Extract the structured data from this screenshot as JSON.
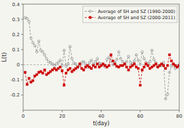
{
  "chart_data": {
    "type": "line",
    "title": "",
    "xlabel": "t(day)",
    "ylabel": "L(t)",
    "x": [
      1,
      2,
      3,
      4,
      5,
      6,
      7,
      8,
      9,
      10,
      11,
      12,
      13,
      14,
      15,
      16,
      17,
      18,
      19,
      20,
      21,
      22,
      23,
      24,
      25,
      26,
      27,
      28,
      29,
      30,
      31,
      32,
      33,
      34,
      35,
      36,
      37,
      38,
      39,
      40,
      41,
      42,
      43,
      44,
      45,
      46,
      47,
      48,
      49,
      50,
      51,
      52,
      53,
      54,
      55,
      56,
      57,
      58,
      59,
      60,
      61,
      62,
      63,
      64,
      65,
      66,
      67,
      68,
      69,
      70,
      71,
      72,
      73,
      74,
      75,
      76,
      77,
      78,
      79,
      80
    ],
    "series": [
      {
        "name": "Average of SH and SZ (1990-2000)",
        "color": "#888888",
        "marker": "circle",
        "line_style": "dashed",
        "values": [
          0.31,
          0.305,
          0.285,
          0.175,
          0.145,
          0.125,
          0.085,
          0.155,
          0.095,
          0.085,
          0.065,
          0.04,
          0.02,
          0.015,
          0.005,
          -0.005,
          0.005,
          0.015,
          0.03,
          -0.005,
          0.095,
          -0.01,
          0.005,
          0.12,
          0.04,
          0.01,
          0.005,
          -0.015,
          -0.005,
          0.015,
          0.02,
          0.005,
          -0.015,
          0.015,
          0.03,
          0.0,
          0.02,
          0.04,
          0.01,
          0.005,
          0.0,
          -0.015,
          0.035,
          0.05,
          0.025,
          0.0,
          0.015,
          0.035,
          0.085,
          0.04,
          0.02,
          0.005,
          0.02,
          0.055,
          0.015,
          0.005,
          0.025,
          0.065,
          0.03,
          0.005,
          0.085,
          0.04,
          0.015,
          0.005,
          0.02,
          0.095,
          0.035,
          0.015,
          -0.015,
          -0.005,
          -0.005,
          0.015,
          -0.225,
          -0.195,
          -0.05,
          -0.01,
          0.005,
          -0.025,
          -0.01,
          0.0
        ]
      },
      {
        "name": "Average of SH and SZ (2000-2011)",
        "color": "#cc0000",
        "marker": "square",
        "line_style": "dashed",
        "values": [
          -0.05,
          -0.13,
          -0.09,
          -0.115,
          -0.105,
          -0.075,
          -0.065,
          -0.05,
          -0.045,
          -0.055,
          -0.035,
          -0.065,
          -0.055,
          -0.045,
          -0.035,
          -0.025,
          -0.035,
          -0.025,
          -0.015,
          -0.04,
          -0.135,
          -0.055,
          -0.035,
          -0.025,
          -0.045,
          -0.035,
          -0.025,
          -0.015,
          0.005,
          -0.025,
          -0.035,
          -0.015,
          -0.005,
          -0.015,
          -0.025,
          -0.005,
          -0.015,
          0.005,
          -0.015,
          -0.005,
          0.005,
          -0.005,
          -0.015,
          -0.005,
          0.065,
          0.025,
          0.005,
          -0.01,
          -0.015,
          -0.005,
          -0.005,
          0.005,
          -0.015,
          -0.035,
          -0.015,
          -0.005,
          0.005,
          -0.015,
          -0.025,
          -0.135,
          -0.035,
          -0.015,
          0.005,
          -0.005,
          -0.025,
          -0.015,
          -0.005,
          0.005,
          -0.015,
          -0.005,
          0.005,
          -0.005,
          -0.025,
          -0.005,
          0.065,
          0.025,
          0.005,
          -0.005,
          -0.015,
          -0.005
        ]
      }
    ],
    "xlim": [
      0,
      80
    ],
    "ylim": [
      -0.3,
      0.4
    ],
    "xticks": [
      0,
      20,
      40,
      60,
      80
    ],
    "yticks": [
      -0.2,
      -0.1,
      0.0,
      0.1,
      0.2,
      0.3,
      0.4
    ],
    "hline_y": 0.0,
    "grid": false,
    "legend": "upper right"
  }
}
